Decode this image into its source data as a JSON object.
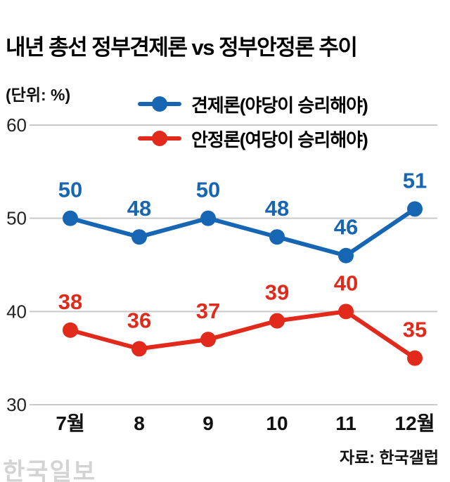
{
  "header": {
    "title": "내년 총선 정부견제론 vs 정부안정론 추이",
    "unit_label": "(단위: %)"
  },
  "legend": [
    {
      "label": "견제론(야당이 승리해야)",
      "color": "#1666b3"
    },
    {
      "label": "안정론(여당이 승리해야)",
      "color": "#e12a1b"
    }
  ],
  "chart_data": {
    "type": "line",
    "categories": [
      "7월",
      "8",
      "9",
      "10",
      "11",
      "12월"
    ],
    "series": [
      {
        "name": "견제론(야당이 승리해야)",
        "color": "#1666b3",
        "values": [
          50,
          48,
          50,
          48,
          46,
          51
        ]
      },
      {
        "name": "안정론(여당이 승리해야)",
        "color": "#e12a1b",
        "values": [
          38,
          36,
          37,
          39,
          40,
          35
        ]
      }
    ],
    "title": "내년 총선 정부견제론 vs 정부안정론 추이",
    "xlabel": "",
    "ylabel": "(단위: %)",
    "ylim": [
      30,
      60
    ],
    "yticks": [
      60,
      50,
      40,
      30
    ],
    "grid": true,
    "gridline_color": "#c9c9c9",
    "legend_position": "top"
  },
  "footer": {
    "source": "자료: 한국갤럽",
    "watermark": "한국일보"
  }
}
